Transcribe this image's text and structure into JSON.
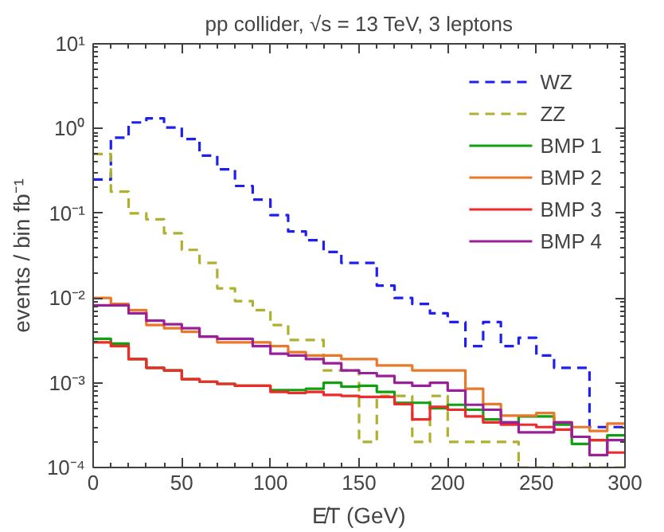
{
  "chart_data": {
    "type": "histogram",
    "title": "pp collider, √s = 13 TeV, 3 leptons",
    "xlabel": "E̸T (GeV)",
    "ylabel": "events / bin fb⁻¹",
    "bins": [
      0,
      10,
      20,
      30,
      40,
      50,
      60,
      70,
      80,
      90,
      100,
      110,
      120,
      130,
      140,
      150,
      160,
      170,
      180,
      190,
      200,
      210,
      220,
      230,
      240,
      250,
      260,
      270,
      280,
      290,
      300
    ],
    "log": "y",
    "grid": false,
    "legend": "top right",
    "xlim": [
      0,
      300
    ],
    "xticks": [
      0,
      50,
      100,
      150,
      200,
      250,
      300
    ],
    "ylim": [
      0.0001,
      10
    ],
    "yticks": [
      {
        "value": 0.0001,
        "label": "10⁻⁴"
      },
      {
        "value": 0.001,
        "label": "10⁻³"
      },
      {
        "value": 0.01,
        "label": "10⁻²"
      },
      {
        "value": 0.1,
        "label": "10⁻¹"
      },
      {
        "value": 1,
        "label": "10⁰"
      },
      {
        "value": 10,
        "label": "10¹"
      }
    ],
    "series": [
      {
        "name": "WZ",
        "color": "#1f1ff0",
        "line_style": "dashed",
        "values": [
          0.25,
          0.78,
          1.18,
          1.32,
          1.03,
          0.75,
          0.48,
          0.33,
          0.21,
          0.145,
          0.095,
          0.061,
          0.048,
          0.035,
          0.026,
          0.026,
          0.014,
          0.01,
          0.0085,
          0.0066,
          0.0052,
          0.0027,
          0.0052,
          0.0027,
          0.0034,
          0.0021,
          0.0015,
          0.0015,
          0.0003,
          0.0003
        ]
      },
      {
        "name": "ZZ",
        "color": "#b0b030",
        "line_style": "dashed",
        "values": [
          0.5,
          0.18,
          0.1,
          0.085,
          0.058,
          0.037,
          0.026,
          0.013,
          0.0092,
          0.0072,
          0.0048,
          0.0032,
          0.0032,
          0.0014,
          0.0014,
          0.0002,
          0.0007,
          0.0007,
          0.0002,
          0.0007,
          0.0002,
          0.0002,
          0.0002,
          0.0002,
          0.0001,
          0.0001,
          0.0001,
          0.0001,
          0.0001,
          0.0001
        ]
      },
      {
        "name": "BMP 1",
        "color": "#10a010",
        "line_style": "solid",
        "values": [
          0.0033,
          0.0029,
          0.0019,
          0.0015,
          0.0014,
          0.0011,
          0.00103,
          0.00097,
          0.00092,
          0.00092,
          0.00082,
          0.00082,
          0.00085,
          0.001,
          0.0009,
          0.00092,
          0.00078,
          0.00058,
          0.00058,
          0.0005,
          0.00055,
          0.00048,
          0.00037,
          0.00034,
          0.0004,
          0.0004,
          0.00032,
          0.00019,
          0.00021,
          0.00024
        ]
      },
      {
        "name": "BMP 2",
        "color": "#e8782a",
        "line_style": "solid",
        "values": [
          0.01,
          0.0085,
          0.0072,
          0.0048,
          0.0044,
          0.004,
          0.0035,
          0.003,
          0.003,
          0.003,
          0.0027,
          0.0023,
          0.0021,
          0.0021,
          0.0019,
          0.0019,
          0.0016,
          0.0016,
          0.0014,
          0.0014,
          0.0014,
          0.00085,
          0.00056,
          0.00041,
          0.00041,
          0.00044,
          0.00034,
          0.0003,
          0.00027,
          0.00033
        ]
      },
      {
        "name": "BMP 3",
        "color": "#ee2a2a",
        "line_style": "solid",
        "values": [
          0.003,
          0.0027,
          0.0019,
          0.0015,
          0.0014,
          0.0011,
          0.00103,
          0.00097,
          0.00092,
          0.00092,
          0.00078,
          0.00076,
          0.00078,
          0.00072,
          0.0007,
          0.00068,
          0.00068,
          0.00056,
          0.00037,
          0.00052,
          0.00048,
          0.0004,
          0.00034,
          0.00032,
          0.00032,
          0.0003,
          0.00028,
          0.00023,
          0.00021,
          0.00015
        ]
      },
      {
        "name": "BMP 4",
        "color": "#9a209a",
        "line_style": "solid",
        "values": [
          0.0082,
          0.0082,
          0.0066,
          0.0054,
          0.0049,
          0.0044,
          0.0035,
          0.0033,
          0.0033,
          0.0027,
          0.0022,
          0.0021,
          0.0019,
          0.0017,
          0.0014,
          0.0013,
          0.0012,
          0.001,
          0.00092,
          0.001,
          0.00081,
          0.00055,
          0.00048,
          0.00034,
          0.00026,
          0.00026,
          0.00034,
          0.00023,
          0.00014,
          0.00021
        ]
      }
    ]
  }
}
